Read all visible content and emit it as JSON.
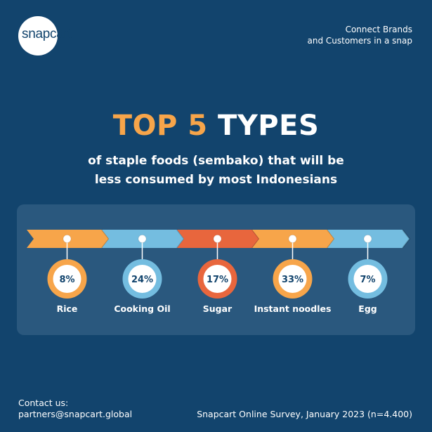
{
  "brand": {
    "logo_text": "snapcart",
    "tagline_line1": "Connect Brands",
    "tagline_line2": "and Customers in a snap"
  },
  "headline": {
    "accent": "TOP 5",
    "rest": "TYPES",
    "subtitle_line1": "of staple foods (sembako) that will be",
    "subtitle_line2": "less consumed by most Indonesians"
  },
  "footer": {
    "contact_label": "Contact us:",
    "contact_email": "partners@snapcart.global",
    "source": "Snapcart Online Survey, January 2023 (n=4.400)"
  },
  "colors": {
    "background": "#12446d",
    "panel": "#2a587e",
    "orange": "#f7a54a",
    "blue": "#74bde0",
    "red": "#e8663d"
  },
  "chart_data": {
    "type": "bar",
    "categories": [
      "Rice",
      "Cooking Oil",
      "Sugar",
      "Instant noodles",
      "Egg"
    ],
    "values": [
      8,
      24,
      17,
      33,
      7
    ],
    "value_labels": [
      "8%",
      "24%",
      "17%",
      "33%",
      "7%"
    ],
    "unit": "%",
    "series_colors": [
      "#f7a54a",
      "#74bde0",
      "#e8663d",
      "#f7a54a",
      "#74bde0"
    ]
  }
}
